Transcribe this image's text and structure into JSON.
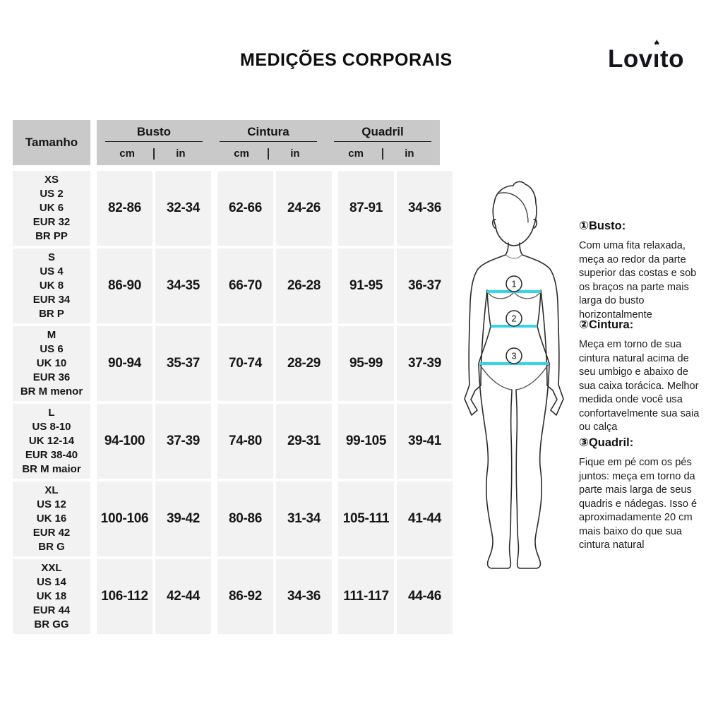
{
  "title": "MEDIÇÕES CORPORAIS",
  "logo": {
    "pre": "Lov",
    "i_char": "ı",
    "heart": "♥",
    "post": "to"
  },
  "colors": {
    "header_bg": "#c9c9c9",
    "cell_bg": "#f2f2f2",
    "accent_cyan": "#35d5e8",
    "text": "#161616"
  },
  "table": {
    "size_header": "Tamanho",
    "groups": [
      {
        "label": "Busto",
        "units": [
          "cm",
          "in"
        ]
      },
      {
        "label": "Cintura",
        "units": [
          "cm",
          "in"
        ]
      },
      {
        "label": "Quadril",
        "units": [
          "cm",
          "in"
        ]
      }
    ],
    "rows": [
      {
        "size": [
          "XS",
          "US 2",
          "UK 6",
          "EUR 32",
          "BR PP"
        ],
        "cells": [
          "82-86",
          "32-34",
          "62-66",
          "24-26",
          "87-91",
          "34-36"
        ]
      },
      {
        "size": [
          "S",
          "US 4",
          "UK 8",
          "EUR 34",
          "BR P"
        ],
        "cells": [
          "86-90",
          "34-35",
          "66-70",
          "26-28",
          "91-95",
          "36-37"
        ]
      },
      {
        "size": [
          "M",
          "US 6",
          "UK 10",
          "EUR 36",
          "BR M menor"
        ],
        "cells": [
          "90-94",
          "35-37",
          "70-74",
          "28-29",
          "95-99",
          "37-39"
        ]
      },
      {
        "size": [
          "L",
          "US 8-10",
          "UK 12-14",
          "EUR 38-40",
          "BR M maior"
        ],
        "cells": [
          "94-100",
          "37-39",
          "74-80",
          "29-31",
          "99-105",
          "39-41"
        ]
      },
      {
        "size": [
          "XL",
          "US 12",
          "UK 16",
          "EUR 42",
          "BR G"
        ],
        "cells": [
          "100-106",
          "39-42",
          "80-86",
          "31-34",
          "105-111",
          "41-44"
        ]
      },
      {
        "size": [
          "XXL",
          "US 14",
          "UK 18",
          "EUR 44",
          "BR GG"
        ],
        "cells": [
          "106-112",
          "42-44",
          "86-92",
          "34-36",
          "111-117",
          "44-46"
        ]
      }
    ]
  },
  "figure": {
    "markers": [
      "1",
      "2",
      "3"
    ]
  },
  "instructions": [
    {
      "title": "①Busto:",
      "body": "Com uma fita relaxada, meça ao redor da parte superior das costas e sob os braços na parte mais larga do busto horizontalmente"
    },
    {
      "title": "②Cintura:",
      "body": "Meça em torno de sua cintura natural acima de seu umbigo e abaixo de sua caixa torácica. Melhor medida onde você usa confortavelmente sua saia ou calça"
    },
    {
      "title": "③Quadril:",
      "body": "Fique em pé com os pés juntos: meça em torno da parte mais larga de seus quadris e nádegas. Isso é aproximadamente 20 cm mais baixo do que sua cintura natural"
    }
  ]
}
